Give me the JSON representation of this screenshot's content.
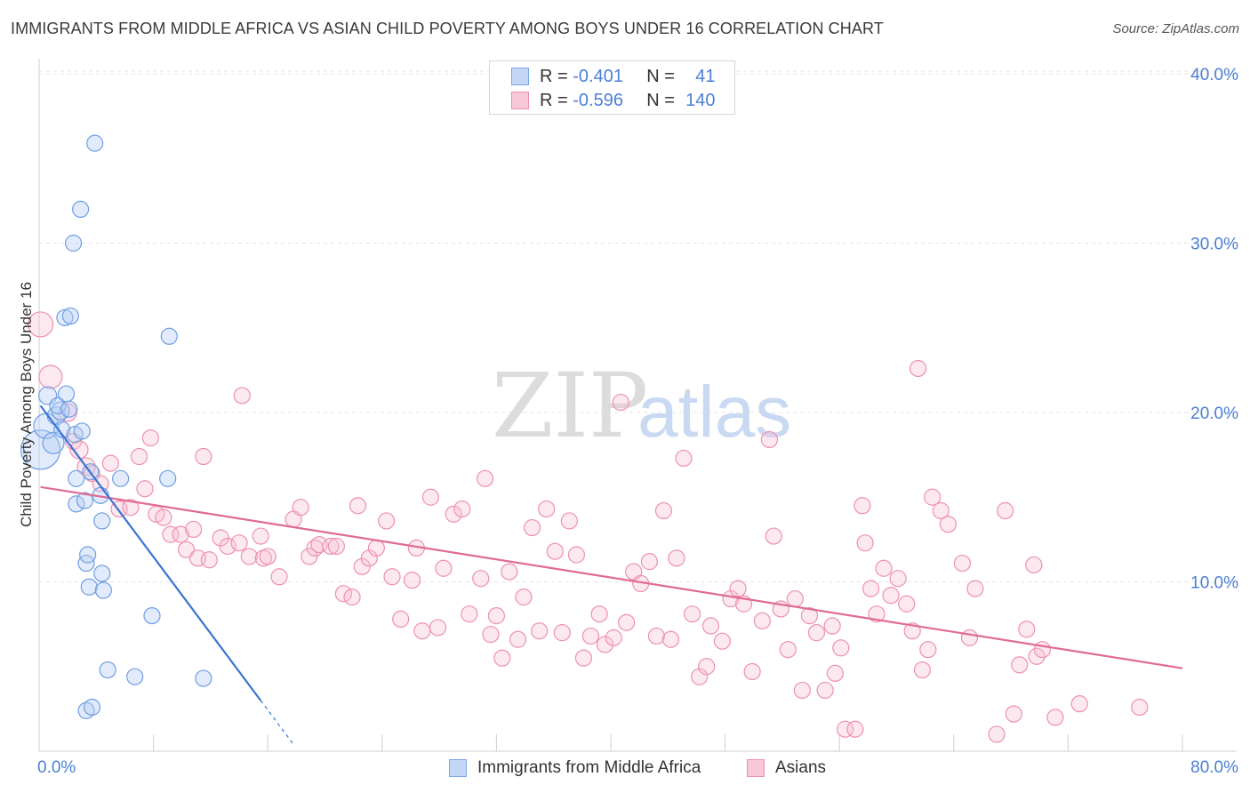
{
  "header": {
    "title": "IMMIGRANTS FROM MIDDLE AFRICA VS ASIAN CHILD POVERTY AMONG BOYS UNDER 16 CORRELATION CHART",
    "source": "Source: ZipAtlas.com"
  },
  "watermark": {
    "part1": "ZIP",
    "part2": "atlas"
  },
  "legend": {
    "series1": {
      "r_label": "R =",
      "r_value": "-0.401",
      "n_label": "N =",
      "n_value": "41"
    },
    "series2": {
      "r_label": "R =",
      "r_value": "-0.596",
      "n_label": "N =",
      "n_value": "140"
    }
  },
  "bottom_legend": {
    "series1": "Immigrants from Middle Africa",
    "series2": "Asians"
  },
  "chart_data": {
    "type": "scatter",
    "ylabel": "Child Poverty Among Boys Under 16",
    "xlim": [
      0,
      80
    ],
    "ylim": [
      0,
      42
    ],
    "x_tick_labels": [
      "0.0%",
      "80.0%"
    ],
    "y_ticks": [
      10,
      20,
      30,
      40
    ],
    "y_tick_labels": [
      "10.0%",
      "20.0%",
      "30.0%",
      "40.0%"
    ],
    "grid": true,
    "colors": {
      "series1": "#7aa6e6",
      "series1_line": "#3a74d4",
      "series2": "#ee90b0",
      "series2_line": "#e06a98"
    },
    "series": [
      {
        "name": "Immigrants from Middle Africa",
        "trend": {
          "x0": 0.1,
          "y0": 20.4,
          "x1": 15.5,
          "y1": 3.0,
          "dash_to_x": 17.8
        },
        "points": [
          [
            0.1,
            17.8,
            22
          ],
          [
            0.5,
            19.2,
            14
          ],
          [
            0.6,
            21.0,
            10
          ],
          [
            1.0,
            18.2,
            12
          ],
          [
            1.2,
            19.8,
            10
          ],
          [
            1.5,
            20.1,
            10
          ],
          [
            1.3,
            20.4,
            9
          ],
          [
            1.6,
            19.0,
            9
          ],
          [
            1.9,
            21.1,
            9
          ],
          [
            2.1,
            20.2,
            9
          ],
          [
            2.5,
            18.7,
            9
          ],
          [
            1.8,
            25.6,
            9
          ],
          [
            2.2,
            25.7,
            9
          ],
          [
            3.0,
            18.9,
            9
          ],
          [
            2.4,
            30.0,
            9
          ],
          [
            2.9,
            32.0,
            9
          ],
          [
            3.9,
            35.9,
            9
          ],
          [
            2.6,
            16.1,
            9
          ],
          [
            2.6,
            14.6,
            9
          ],
          [
            3.2,
            14.8,
            9
          ],
          [
            3.6,
            16.5,
            9
          ],
          [
            4.3,
            15.1,
            9
          ],
          [
            4.4,
            13.6,
            9
          ],
          [
            5.7,
            16.1,
            9
          ],
          [
            9.0,
            16.1,
            9
          ],
          [
            3.3,
            11.1,
            9
          ],
          [
            3.4,
            11.6,
            9
          ],
          [
            3.5,
            9.7,
            9
          ],
          [
            4.4,
            10.5,
            9
          ],
          [
            4.5,
            9.5,
            9
          ],
          [
            7.9,
            8.0,
            9
          ],
          [
            9.1,
            24.5,
            9
          ],
          [
            4.8,
            4.8,
            9
          ],
          [
            6.7,
            4.4,
            9
          ],
          [
            11.5,
            4.3,
            9
          ],
          [
            3.3,
            2.4,
            9
          ],
          [
            3.7,
            2.6,
            9
          ]
        ]
      },
      {
        "name": "Asians",
        "trend": {
          "x0": 0.1,
          "y0": 15.6,
          "x1": 80.0,
          "y1": 4.9
        },
        "points": [
          [
            0.1,
            25.2,
            14
          ],
          [
            0.8,
            22.1,
            13
          ],
          [
            2.0,
            20.0,
            10
          ],
          [
            2.4,
            18.3,
            9
          ],
          [
            2.8,
            17.8,
            10
          ],
          [
            3.3,
            16.8,
            10
          ],
          [
            3.7,
            16.4,
            9
          ],
          [
            4.3,
            15.8,
            9
          ],
          [
            5.0,
            17.0,
            9
          ],
          [
            5.6,
            14.3,
            9
          ],
          [
            6.4,
            14.4,
            9
          ],
          [
            7.0,
            17.4,
            9
          ],
          [
            7.4,
            15.5,
            9
          ],
          [
            7.8,
            18.5,
            9
          ],
          [
            8.2,
            14.0,
            9
          ],
          [
            8.7,
            13.8,
            9
          ],
          [
            9.2,
            12.8,
            9
          ],
          [
            9.9,
            12.8,
            9
          ],
          [
            10.3,
            11.9,
            9
          ],
          [
            10.8,
            13.1,
            9
          ],
          [
            11.1,
            11.4,
            9
          ],
          [
            11.5,
            17.4,
            9
          ],
          [
            11.9,
            11.3,
            9
          ],
          [
            12.7,
            12.6,
            9
          ],
          [
            13.2,
            12.1,
            9
          ],
          [
            14.0,
            12.3,
            9
          ],
          [
            14.2,
            21.0,
            9
          ],
          [
            14.7,
            11.5,
            9
          ],
          [
            15.5,
            12.7,
            9
          ],
          [
            15.7,
            11.4,
            9
          ],
          [
            16.0,
            11.5,
            9
          ],
          [
            16.8,
            10.3,
            9
          ],
          [
            17.8,
            13.7,
            9
          ],
          [
            18.3,
            14.4,
            9
          ],
          [
            18.9,
            11.5,
            9
          ],
          [
            19.3,
            12.0,
            9
          ],
          [
            19.6,
            12.2,
            9
          ],
          [
            20.4,
            12.1,
            9
          ],
          [
            20.8,
            12.1,
            9
          ],
          [
            21.3,
            9.3,
            9
          ],
          [
            21.9,
            9.1,
            9
          ],
          [
            22.3,
            14.5,
            9
          ],
          [
            22.6,
            10.9,
            9
          ],
          [
            23.1,
            11.4,
            9
          ],
          [
            23.6,
            12.0,
            9
          ],
          [
            24.3,
            13.6,
            9
          ],
          [
            24.7,
            10.3,
            9
          ],
          [
            25.3,
            7.8,
            9
          ],
          [
            26.1,
            10.1,
            9
          ],
          [
            26.4,
            12.0,
            9
          ],
          [
            26.8,
            7.1,
            9
          ],
          [
            27.4,
            15.0,
            9
          ],
          [
            27.9,
            7.3,
            9
          ],
          [
            28.3,
            10.8,
            9
          ],
          [
            29.0,
            14.0,
            9
          ],
          [
            29.6,
            14.3,
            9
          ],
          [
            30.1,
            8.1,
            9
          ],
          [
            30.9,
            10.2,
            9
          ],
          [
            31.2,
            16.1,
            9
          ],
          [
            31.6,
            6.9,
            9
          ],
          [
            32.0,
            8.0,
            9
          ],
          [
            32.4,
            5.5,
            9
          ],
          [
            32.9,
            10.6,
            9
          ],
          [
            33.5,
            6.6,
            9
          ],
          [
            33.9,
            9.1,
            9
          ],
          [
            34.5,
            13.2,
            9
          ],
          [
            35.0,
            7.1,
            9
          ],
          [
            35.5,
            14.3,
            9
          ],
          [
            36.1,
            11.8,
            9
          ],
          [
            36.6,
            7.0,
            9
          ],
          [
            37.1,
            13.6,
            9
          ],
          [
            37.6,
            11.6,
            9
          ],
          [
            38.1,
            5.5,
            9
          ],
          [
            38.6,
            6.8,
            9
          ],
          [
            39.2,
            8.1,
            9
          ],
          [
            39.6,
            6.3,
            9
          ],
          [
            40.2,
            6.7,
            9
          ],
          [
            40.7,
            20.6,
            9
          ],
          [
            41.1,
            7.6,
            9
          ],
          [
            41.6,
            10.6,
            9
          ],
          [
            42.1,
            9.9,
            9
          ],
          [
            42.7,
            11.2,
            9
          ],
          [
            43.2,
            6.8,
            9
          ],
          [
            43.7,
            14.2,
            9
          ],
          [
            44.2,
            6.6,
            9
          ],
          [
            44.6,
            11.4,
            9
          ],
          [
            45.1,
            17.3,
            9
          ],
          [
            45.7,
            8.1,
            9
          ],
          [
            46.2,
            4.4,
            9
          ],
          [
            46.7,
            5.0,
            9
          ],
          [
            47.0,
            7.4,
            9
          ],
          [
            47.8,
            6.5,
            9
          ],
          [
            48.4,
            9.0,
            9
          ],
          [
            48.9,
            9.6,
            9
          ],
          [
            49.3,
            8.7,
            9
          ],
          [
            49.9,
            4.7,
            9
          ],
          [
            50.6,
            7.7,
            9
          ],
          [
            51.1,
            18.4,
            9
          ],
          [
            51.4,
            12.7,
            9
          ],
          [
            51.9,
            8.4,
            9
          ],
          [
            52.4,
            6.0,
            9
          ],
          [
            52.9,
            9.0,
            9
          ],
          [
            53.4,
            3.6,
            9
          ],
          [
            53.9,
            8.0,
            9
          ],
          [
            54.4,
            7.0,
            9
          ],
          [
            55.0,
            3.6,
            9
          ],
          [
            55.5,
            7.4,
            9
          ],
          [
            56.1,
            6.1,
            9
          ],
          [
            56.4,
            1.3,
            9
          ],
          [
            57.1,
            1.3,
            9
          ],
          [
            57.6,
            14.5,
            9
          ],
          [
            58.2,
            9.6,
            9
          ],
          [
            58.6,
            8.1,
            9
          ],
          [
            59.1,
            10.8,
            9
          ],
          [
            59.6,
            9.2,
            9
          ],
          [
            60.1,
            10.2,
            9
          ],
          [
            60.7,
            8.7,
            9
          ],
          [
            61.1,
            7.1,
            9
          ],
          [
            61.8,
            4.8,
            9
          ],
          [
            62.2,
            6.0,
            9
          ],
          [
            62.5,
            15.0,
            9
          ],
          [
            63.1,
            14.2,
            9
          ],
          [
            63.6,
            13.4,
            9
          ],
          [
            64.6,
            11.1,
            9
          ],
          [
            65.1,
            6.7,
            9
          ],
          [
            65.5,
            9.6,
            9
          ],
          [
            67.0,
            1.0,
            9
          ],
          [
            67.6,
            14.2,
            9
          ],
          [
            68.2,
            2.2,
            9
          ],
          [
            68.6,
            5.1,
            9
          ],
          [
            69.1,
            7.2,
            9
          ],
          [
            69.6,
            11.0,
            9
          ],
          [
            61.5,
            22.6,
            9
          ],
          [
            72.8,
            2.8,
            9
          ],
          [
            77.0,
            2.6,
            9
          ],
          [
            69.8,
            5.6,
            9
          ],
          [
            70.2,
            6.0,
            9
          ],
          [
            71.1,
            2.0,
            9
          ],
          [
            57.8,
            12.3,
            9
          ],
          [
            55.7,
            4.6,
            9
          ]
        ]
      }
    ]
  }
}
